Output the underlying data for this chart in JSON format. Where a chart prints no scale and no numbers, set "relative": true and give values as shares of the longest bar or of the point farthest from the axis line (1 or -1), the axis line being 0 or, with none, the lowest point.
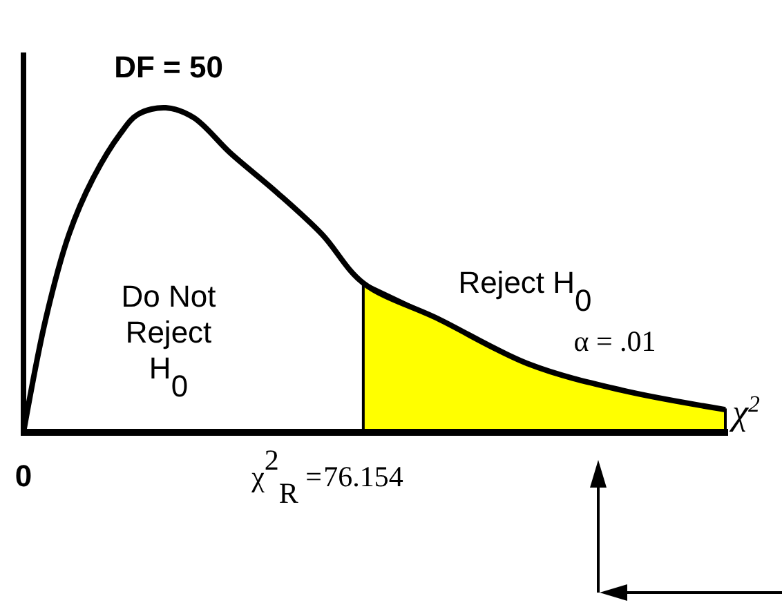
{
  "chart_data": {
    "type": "line",
    "title": "DF = 50",
    "xlabel": "χ$^{2}$",
    "relative": true,
    "xlim": [
      0,
      157.3
    ],
    "xticks": [
      0,
      76.154
    ],
    "series": [
      {
        "type": "area",
        "color": "#ffff00",
        "x": [
          76.154,
          92.9,
          113.3,
          134.0,
          157.3
        ],
        "values": [
          0.46,
          0.35,
          0.21,
          0.13,
          0.07
        ]
      },
      {
        "color": "#000000",
        "x": [
          0,
          5.0,
          10.2,
          15.5,
          21.7,
          25.7,
          31.9,
          38.1,
          46.4,
          56.7,
          66.9,
          76.154,
          92.9,
          113.3,
          134.0,
          157.3
        ],
        "values": [
          0,
          0.35,
          0.61,
          0.78,
          0.92,
          0.98,
          1.0,
          0.97,
          0.86,
          0.74,
          0.61,
          0.46,
          0.35,
          0.21,
          0.13,
          0.07
        ]
      }
    ],
    "annotations": [
      "Do Not\nReject\nH$_{0}$",
      "Reject H$_{0}$",
      "α = .01",
      "χ$^{2}$$_{R}$ ="
    ],
    "line_style": "solid"
  }
}
